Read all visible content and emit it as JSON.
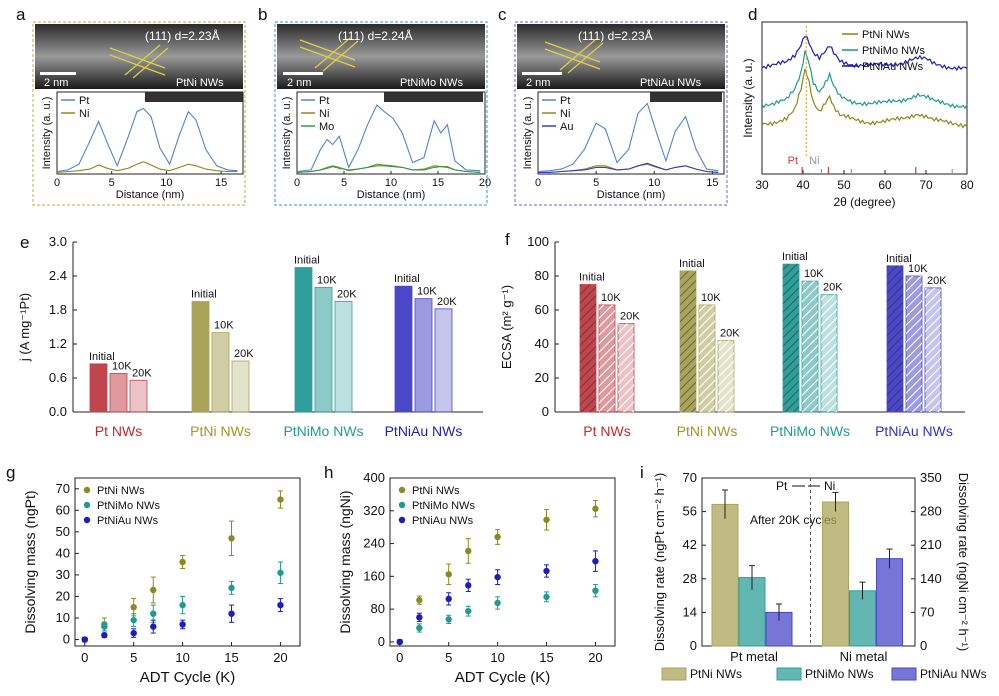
{
  "panel_letters": {
    "a": "a",
    "b": "b",
    "c": "c",
    "d": "d",
    "e": "e",
    "f": "f",
    "g": "g",
    "h": "h",
    "i": "i"
  },
  "colors": {
    "ptni": "#8a8a1e",
    "ptnimo": "#1f9c91",
    "ptniau": "#1d1dbf",
    "pt_line": "#4f86c6",
    "ni_line": "#8a8a1e",
    "mo_line": "#2e9a55",
    "au_line": "#3a3ad0",
    "pt_bar": "#c1454d",
    "ptni_bar": "#a9a45a",
    "ptnimo_bar": "#2e9f9a",
    "ptniau_bar": "#4a48c8",
    "frame_a": "#b5b03f",
    "frame_b": "#2aa59b",
    "frame_c": "#6a66c8"
  },
  "panel_a": {
    "lattice_label": "(111) d=2.23Å",
    "scale_label": "2 nm",
    "sample_label": "PtNi NWs",
    "chart_data": {
      "type": "line",
      "xlabel": "Distance (nm)",
      "ylabel": "Intensity (a. u.)",
      "xlim": [
        0,
        17
      ],
      "xticks": [
        0,
        5,
        10,
        15
      ],
      "series": [
        {
          "name": "Pt",
          "x": [
            0,
            1,
            2,
            3,
            3.8,
            4.6,
            5.5,
            6.5,
            7.3,
            7.9,
            8.6,
            9.4,
            10.3,
            11.2,
            12.0,
            12.7,
            13.6,
            14.6,
            15.6,
            16.5
          ],
          "values": [
            0.03,
            0.05,
            0.12,
            0.4,
            0.64,
            0.38,
            0.1,
            0.45,
            0.76,
            0.8,
            0.7,
            0.32,
            0.12,
            0.48,
            0.76,
            0.66,
            0.3,
            0.1,
            0.05,
            0.04
          ]
        },
        {
          "name": "Ni",
          "x": [
            0,
            1,
            2,
            3,
            3.8,
            4.6,
            5.5,
            6.5,
            7.3,
            7.9,
            8.6,
            9.4,
            10.3,
            11.2,
            12.0,
            12.7,
            13.6,
            14.6,
            15.6,
            16.5
          ],
          "values": [
            0.02,
            0.03,
            0.04,
            0.06,
            0.11,
            0.07,
            0.04,
            0.07,
            0.12,
            0.15,
            0.11,
            0.06,
            0.04,
            0.08,
            0.12,
            0.1,
            0.06,
            0.04,
            0.03,
            0.03
          ]
        }
      ]
    }
  },
  "panel_b": {
    "lattice_label": "(111) d=2.24Å",
    "scale_label": "2 nm",
    "sample_label": "PtNiMo NWs",
    "chart_data": {
      "type": "line",
      "xlabel": "Distance (nm)",
      "ylabel": "Intensity (a. u.)",
      "xlim": [
        0,
        20
      ],
      "xticks": [
        0,
        5,
        10,
        15,
        20
      ],
      "series": [
        {
          "name": "Pt",
          "x": [
            0,
            1.5,
            2.5,
            3.2,
            3.8,
            4.5,
            5.5,
            6.5,
            7.5,
            8.5,
            9.3,
            10.2,
            11.2,
            12.3,
            13.5,
            14.6,
            15.3,
            16.0,
            16.8,
            18.0,
            19.5
          ],
          "values": [
            0.03,
            0.05,
            0.3,
            0.42,
            0.36,
            0.46,
            0.08,
            0.3,
            0.6,
            0.84,
            0.76,
            0.68,
            0.5,
            0.14,
            0.2,
            0.65,
            0.5,
            0.6,
            0.16,
            0.05,
            0.04
          ]
        },
        {
          "name": "Ni",
          "x": [
            0,
            1.5,
            2.5,
            3.2,
            3.8,
            4.5,
            5.5,
            6.5,
            7.5,
            8.5,
            9.3,
            10.2,
            11.2,
            12.3,
            13.5,
            14.6,
            15.3,
            16.0,
            16.8,
            18.0,
            19.5
          ],
          "values": [
            0.02,
            0.03,
            0.05,
            0.08,
            0.1,
            0.08,
            0.04,
            0.06,
            0.08,
            0.12,
            0.11,
            0.1,
            0.08,
            0.05,
            0.06,
            0.1,
            0.09,
            0.09,
            0.05,
            0.03,
            0.02
          ]
        },
        {
          "name": "Mo",
          "x": [
            0,
            1.5,
            2.5,
            3.2,
            3.8,
            4.5,
            5.5,
            6.5,
            7.5,
            8.5,
            9.3,
            10.2,
            11.2,
            12.3,
            13.5,
            14.6,
            15.3,
            16.0,
            16.8,
            18.0,
            19.5
          ],
          "values": [
            0.02,
            0.03,
            0.05,
            0.07,
            0.09,
            0.07,
            0.05,
            0.06,
            0.08,
            0.1,
            0.1,
            0.09,
            0.08,
            0.05,
            0.05,
            0.08,
            0.09,
            0.08,
            0.05,
            0.03,
            0.02
          ]
        }
      ]
    }
  },
  "panel_c": {
    "lattice_label": "(111) d=2.23Å",
    "scale_label": "2 nm",
    "sample_label": "PtNiAu NWs",
    "chart_data": {
      "type": "line",
      "xlabel": "Distance (nm)",
      "ylabel": "Intensity (a. u.)",
      "xlim": [
        0,
        16
      ],
      "xticks": [
        0,
        5,
        10,
        15
      ],
      "series": [
        {
          "name": "Pt",
          "x": [
            0,
            1,
            2,
            3,
            4,
            5,
            5.8,
            6.8,
            7.8,
            8.6,
            9.4,
            10.2,
            11.0,
            11.8,
            12.7,
            13.6,
            14.5,
            15.5
          ],
          "values": [
            0.03,
            0.04,
            0.06,
            0.12,
            0.3,
            0.62,
            0.55,
            0.14,
            0.3,
            0.74,
            0.86,
            0.5,
            0.16,
            0.52,
            0.7,
            0.3,
            0.06,
            0.04
          ]
        },
        {
          "name": "Ni",
          "x": [
            0,
            1,
            2,
            3,
            4,
            5,
            5.8,
            6.8,
            7.8,
            8.6,
            9.4,
            10.2,
            11.0,
            11.8,
            12.7,
            13.6,
            14.5,
            15.5
          ],
          "values": [
            0.02,
            0.02,
            0.03,
            0.04,
            0.06,
            0.1,
            0.1,
            0.05,
            0.06,
            0.1,
            0.12,
            0.08,
            0.05,
            0.08,
            0.1,
            0.06,
            0.03,
            0.02
          ]
        },
        {
          "name": "Au",
          "x": [
            0,
            1,
            2,
            3,
            4,
            5,
            5.8,
            6.8,
            7.8,
            8.6,
            9.4,
            10.2,
            11.0,
            11.8,
            12.7,
            13.6,
            14.5,
            15.5
          ],
          "values": [
            0.02,
            0.02,
            0.03,
            0.04,
            0.05,
            0.08,
            0.08,
            0.05,
            0.06,
            0.1,
            0.13,
            0.09,
            0.05,
            0.08,
            0.1,
            0.06,
            0.03,
            0.02
          ]
        }
      ]
    }
  },
  "panel_d": {
    "chart_data": {
      "type": "line",
      "xlabel": "2θ (degree)",
      "ylabel": "Intensity (a. u.)",
      "xlim": [
        30,
        80
      ],
      "xticks": [
        30,
        40,
        50,
        60,
        70,
        80
      ],
      "series": [
        {
          "name": "PtNi NWs",
          "x": [
            30,
            33,
            36,
            38,
            39.5,
            40.5,
            41.3,
            42.5,
            44,
            45.5,
            46.5,
            47.5,
            49,
            52,
            56,
            60,
            64,
            66,
            68,
            70,
            72,
            76,
            80
          ],
          "values": [
            0.35,
            0.36,
            0.38,
            0.44,
            0.58,
            0.72,
            0.66,
            0.5,
            0.44,
            0.5,
            0.54,
            0.46,
            0.4,
            0.38,
            0.36,
            0.36,
            0.38,
            0.4,
            0.42,
            0.4,
            0.37,
            0.35,
            0.34
          ]
        },
        {
          "name": "PtNiMo NWs",
          "x": [
            30,
            33,
            36,
            38,
            39.5,
            40.5,
            41.3,
            42.5,
            44,
            45.5,
            46.5,
            47.5,
            49,
            52,
            56,
            60,
            64,
            66,
            68,
            70,
            72,
            76,
            80
          ],
          "values": [
            0.48,
            0.49,
            0.51,
            0.58,
            0.7,
            0.85,
            0.8,
            0.64,
            0.57,
            0.63,
            0.68,
            0.6,
            0.53,
            0.5,
            0.49,
            0.49,
            0.51,
            0.53,
            0.55,
            0.53,
            0.5,
            0.48,
            0.47
          ]
        },
        {
          "name": "PtNiAu NWs",
          "x": [
            30,
            33,
            36,
            38,
            39.5,
            40.5,
            41.3,
            42.5,
            44,
            45.5,
            46.5,
            47.5,
            49,
            52,
            56,
            60,
            64,
            66,
            68,
            70,
            72,
            76,
            80
          ],
          "values": [
            0.74,
            0.75,
            0.77,
            0.82,
            0.9,
            0.97,
            0.93,
            0.84,
            0.8,
            0.84,
            0.88,
            0.83,
            0.78,
            0.76,
            0.75,
            0.75,
            0.77,
            0.79,
            0.8,
            0.79,
            0.76,
            0.74,
            0.73
          ]
        }
      ],
      "reference_label_pt": "Pt",
      "reference_label_ni": "Ni",
      "reference_pt_peaks": [
        39.8,
        46.2,
        67.5
      ],
      "reference_ni_peaks": [
        44.5,
        51.8,
        76.4
      ],
      "dashed_line_at": 40.8
    }
  },
  "panel_e": {
    "chart_data": {
      "type": "bar",
      "ylabel": "j (A mg⁻¹Pt)",
      "ylim": [
        0,
        3.0
      ],
      "yticks": [
        0.0,
        0.6,
        1.2,
        1.8,
        2.4,
        3.0
      ],
      "groups": [
        {
          "name": "Pt NWs",
          "values": [
            0.85,
            0.68,
            0.56
          ]
        },
        {
          "name": "PtNi NWs",
          "values": [
            1.95,
            1.4,
            0.9
          ]
        },
        {
          "name": "PtNiMo NWs",
          "values": [
            2.55,
            2.2,
            1.95
          ]
        },
        {
          "name": "PtNiAu NWs",
          "values": [
            2.22,
            2.0,
            1.82
          ]
        }
      ],
      "bar_labels": [
        "Initial",
        "10K",
        "20K"
      ]
    }
  },
  "panel_f": {
    "chart_data": {
      "type": "bar",
      "ylabel": "ECSA (m² g⁻¹)",
      "ylim": [
        0,
        100
      ],
      "yticks": [
        0,
        20,
        40,
        60,
        80,
        100
      ],
      "groups": [
        {
          "name": "Pt NWs",
          "values": [
            75,
            63,
            52
          ]
        },
        {
          "name": "PtNi NWs",
          "values": [
            83,
            63,
            42
          ]
        },
        {
          "name": "PtNiMo NWs",
          "values": [
            87,
            77,
            69
          ]
        },
        {
          "name": "PtNiAu NWs",
          "values": [
            86,
            80,
            73
          ]
        }
      ],
      "bar_labels": [
        "Initial",
        "10K",
        "20K"
      ]
    }
  },
  "panel_g": {
    "chart_data": {
      "type": "scatter",
      "xlabel": "ADT Cycle (K)",
      "ylabel": "Dissolving mass (ngPt)",
      "xlim": [
        -1,
        22
      ],
      "ylim": [
        -3,
        75
      ],
      "xticks": [
        0,
        5,
        10,
        15,
        20
      ],
      "yticks": [
        0,
        10,
        20,
        30,
        40,
        50,
        60,
        70
      ],
      "x": [
        0,
        2,
        5,
        7,
        10,
        15,
        20
      ],
      "series": [
        {
          "name": "PtNi NWs",
          "values": [
            0,
            7,
            15,
            23,
            36,
            47,
            65
          ],
          "errors": [
            1,
            3,
            4,
            6,
            3,
            8,
            4
          ]
        },
        {
          "name": "PtNiMo NWs",
          "values": [
            0,
            6,
            9,
            12,
            16,
            24,
            31
          ],
          "errors": [
            1,
            2,
            3,
            4,
            4,
            3,
            5
          ]
        },
        {
          "name": "PtNiAu NWs",
          "values": [
            0,
            2,
            3,
            6,
            7,
            12,
            16
          ],
          "errors": [
            1,
            1,
            2,
            3,
            2,
            4,
            3
          ]
        }
      ]
    }
  },
  "panel_h": {
    "chart_data": {
      "type": "scatter",
      "xlabel": "ADT Cycle (K)",
      "ylabel": "Dissolving mass (ngNi)",
      "xlim": [
        -1,
        22
      ],
      "ylim": [
        -10,
        400
      ],
      "xticks": [
        0,
        5,
        10,
        15,
        20
      ],
      "yticks": [
        0,
        80,
        160,
        240,
        320,
        400
      ],
      "x": [
        0,
        2,
        5,
        7,
        10,
        15,
        20
      ],
      "series": [
        {
          "name": "PtNi NWs",
          "values": [
            0,
            102,
            165,
            222,
            256,
            298,
            325
          ],
          "errors": [
            5,
            10,
            25,
            30,
            18,
            25,
            20
          ]
        },
        {
          "name": "PtNiMo NWs",
          "values": [
            0,
            34,
            55,
            75,
            95,
            110,
            125
          ],
          "errors": [
            5,
            10,
            10,
            12,
            15,
            12,
            15
          ]
        },
        {
          "name": "PtNiAu NWs",
          "values": [
            0,
            60,
            105,
            138,
            158,
            173,
            197
          ],
          "errors": [
            5,
            10,
            15,
            15,
            18,
            15,
            25
          ]
        }
      ]
    }
  },
  "panel_i": {
    "annotation_pt": "Pt",
    "annotation_ni": "Ni",
    "after_label": "After 20K cycles",
    "chart_data": {
      "type": "bar",
      "ylabel_left": "Dissolving rate (ngPt cm⁻² h⁻¹)",
      "ylabel_right": "Dissolving rate (ngNi cm⁻² h⁻¹)",
      "ylim_left": [
        0,
        70
      ],
      "ylim_right": [
        0,
        350
      ],
      "yticks_left": [
        0,
        14,
        28,
        42,
        56,
        70
      ],
      "yticks_right": [
        0,
        70,
        140,
        210,
        280,
        350
      ],
      "categories": [
        "Pt metal",
        "Ni metal"
      ],
      "series": [
        {
          "name": "PtNi NWs",
          "pt_metal": 59,
          "pt_err": 6,
          "ni_metal": 300,
          "ni_err": 20
        },
        {
          "name": "PtNiMo NWs",
          "pt_metal": 28.5,
          "pt_err": 5,
          "ni_metal": 115,
          "ni_err": 18
        },
        {
          "name": "PtNiAu NWs",
          "pt_metal": 14,
          "pt_err": 3.5,
          "ni_metal": 182,
          "ni_err": 20
        }
      ]
    }
  }
}
